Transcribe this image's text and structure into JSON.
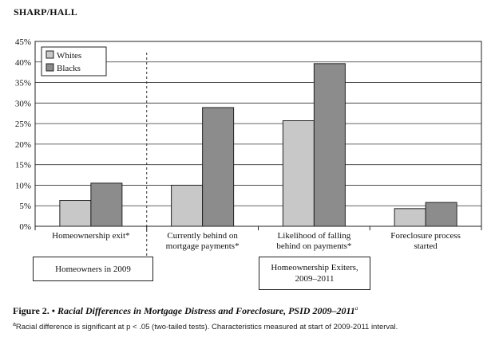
{
  "header": "SHARP/HALL",
  "chart_data": {
    "type": "bar",
    "categories": [
      [
        "Homeownership exit*"
      ],
      [
        "Currently behind on",
        "mortgage payments*"
      ],
      [
        "Likelihood of falling",
        "behind on payments*"
      ],
      [
        "Foreclosure process",
        "started"
      ]
    ],
    "series": [
      {
        "name": "Whites",
        "color": "#c8c8c8",
        "values": [
          6.3,
          10.0,
          25.7,
          4.3
        ]
      },
      {
        "name": "Blacks",
        "color": "#8c8c8c",
        "values": [
          10.5,
          28.9,
          39.6,
          5.8
        ]
      }
    ],
    "ylim": [
      0,
      45
    ],
    "yticks": [
      "0%",
      "5%",
      "10%",
      "15%",
      "20%",
      "25%",
      "30%",
      "35%",
      "40%",
      "45%"
    ],
    "legend_position": "top-left",
    "grid": true
  },
  "groups": {
    "homeowners": "Homeowners in 2009",
    "exiters": [
      "Homeownership Exiters,",
      "2009–2011"
    ]
  },
  "caption": {
    "label": "Figure 2.",
    "bullet": "•",
    "title": "Racial Differences in Mortgage Distress and Foreclosure, PSID 2009–2011",
    "title_sup": "a"
  },
  "note": {
    "sup": "a",
    "text": "Racial difference is significant at p < .05 (two-tailed tests). Characteristics measured at start of 2009-2011 interval."
  }
}
